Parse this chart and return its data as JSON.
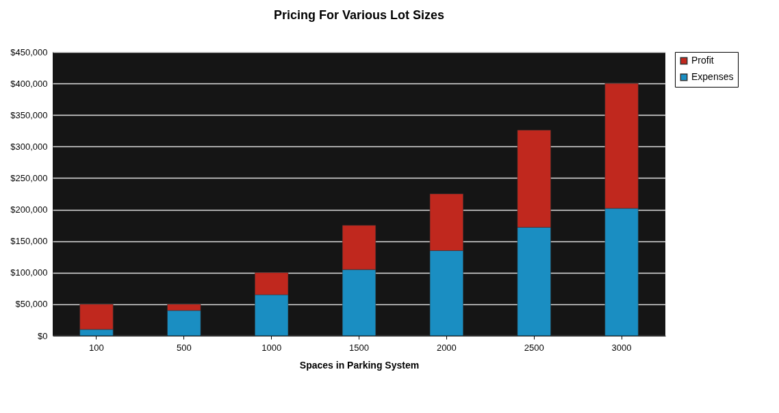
{
  "chart_data": {
    "type": "bar",
    "title": "Pricing For Various Lot Sizes",
    "xlabel": "Spaces in Parking System",
    "categories": [
      "100",
      "500",
      "1000",
      "1500",
      "2000",
      "2500",
      "3000"
    ],
    "stacked": true,
    "series": [
      {
        "name": "Expenses",
        "color": "#1a8ec2",
        "values": [
          10000,
          40000,
          65000,
          105000,
          135000,
          172000,
          202000
        ]
      },
      {
        "name": "Profit",
        "color": "#c0281e",
        "values": [
          40000,
          10000,
          35000,
          70000,
          90000,
          154000,
          198000
        ]
      }
    ],
    "ylim": [
      0,
      450000
    ],
    "yticks": [
      {
        "value": 0,
        "label": "$0"
      },
      {
        "value": 50000,
        "label": "$50,000"
      },
      {
        "value": 100000,
        "label": "$100,000"
      },
      {
        "value": 150000,
        "label": "$150,000"
      },
      {
        "value": 200000,
        "label": "$200,000"
      },
      {
        "value": 250000,
        "label": "$250,000"
      },
      {
        "value": 300000,
        "label": "$300,000"
      },
      {
        "value": 350000,
        "label": "$350,000"
      },
      {
        "value": 400000,
        "label": "$400,000"
      },
      {
        "value": 450000,
        "label": "$450,000"
      }
    ],
    "grid": "y",
    "legend": "right"
  }
}
